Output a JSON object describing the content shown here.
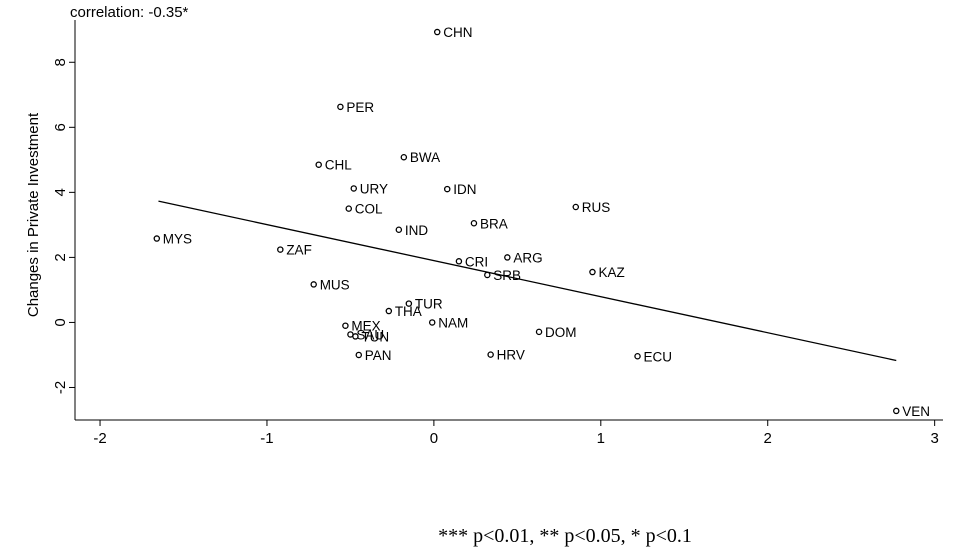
{
  "chart_data": {
    "type": "scatter",
    "annotation": "correlation: -0.35*",
    "ylabel": "Changes in Private Investment",
    "xlabel": "",
    "xlim": [
      -2.15,
      3.05
    ],
    "ylim": [
      -3.0,
      9.3
    ],
    "xticks": [
      -2,
      -1,
      0,
      1,
      2,
      3
    ],
    "yticks": [
      -2,
      0,
      2,
      4,
      6,
      8
    ],
    "grid": false,
    "legend": "none",
    "fit_line": {
      "x": [
        -1.65,
        2.77
      ],
      "y": [
        3.73,
        -1.17
      ]
    },
    "points": [
      {
        "label": "CHN",
        "x": 0.02,
        "y": 8.93
      },
      {
        "label": "PER",
        "x": -0.56,
        "y": 6.63
      },
      {
        "label": "CHL",
        "x": -0.69,
        "y": 4.85
      },
      {
        "label": "BWA",
        "x": -0.18,
        "y": 5.08
      },
      {
        "label": "URY",
        "x": -0.48,
        "y": 4.12
      },
      {
        "label": "IDN",
        "x": 0.08,
        "y": 4.1
      },
      {
        "label": "RUS",
        "x": 0.85,
        "y": 3.55
      },
      {
        "label": "COL",
        "x": -0.51,
        "y": 3.5
      },
      {
        "label": "BRA",
        "x": 0.24,
        "y": 3.05
      },
      {
        "label": "IND",
        "x": -0.21,
        "y": 2.85
      },
      {
        "label": "MYS",
        "x": -1.66,
        "y": 2.58
      },
      {
        "label": "ZAF",
        "x": -0.92,
        "y": 2.24
      },
      {
        "label": "ARG",
        "x": 0.44,
        "y": 2.0
      },
      {
        "label": "CRI",
        "x": 0.15,
        "y": 1.88
      },
      {
        "label": "KAZ",
        "x": 0.95,
        "y": 1.55
      },
      {
        "label": "SRB",
        "x": 0.32,
        "y": 1.46
      },
      {
        "label": "MUS",
        "x": -0.72,
        "y": 1.17
      },
      {
        "label": "TUR",
        "x": -0.15,
        "y": 0.58
      },
      {
        "label": "THA",
        "x": -0.27,
        "y": 0.35
      },
      {
        "label": "NAM",
        "x": -0.01,
        "y": 0.0
      },
      {
        "label": "MEX",
        "x": -0.53,
        "y": -0.1
      },
      {
        "label": "DOM",
        "x": 0.63,
        "y": -0.29
      },
      {
        "label": "SAU",
        "x": -0.5,
        "y": -0.37
      },
      {
        "label": "TUN",
        "x": -0.47,
        "y": -0.43
      },
      {
        "label": "PAN",
        "x": -0.45,
        "y": -1.0
      },
      {
        "label": "HRV",
        "x": 0.34,
        "y": -0.99
      },
      {
        "label": "ECU",
        "x": 1.22,
        "y": -1.04
      },
      {
        "label": "VEN",
        "x": 2.77,
        "y": -2.72
      }
    ]
  },
  "footnote": "*** p<0.01, ** p<0.05, * p<0.1"
}
